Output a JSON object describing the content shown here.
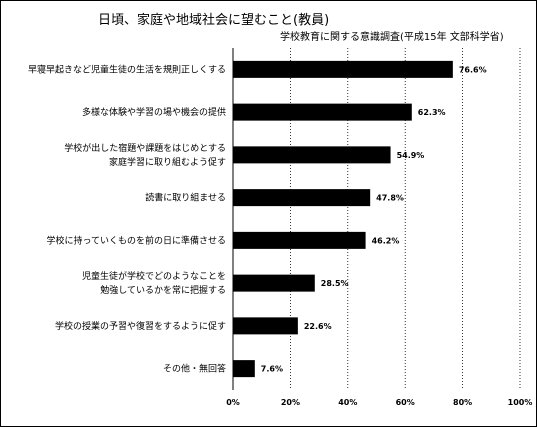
{
  "chart_data": {
    "type": "bar",
    "orientation": "horizontal",
    "title": "日頃、家庭や地域社会に望むこと(教員)",
    "subtitle": "学校教育に関する意識調査(平成15年 文部科学省)",
    "categories": [
      [
        "早寝早起きなど児童生徒の生活を規則正しくする"
      ],
      [
        "多様な体験や学習の場や機会の提供"
      ],
      [
        "学校が出した宿題や課題をはじめとする",
        "家庭学習に取り組むよう促す"
      ],
      [
        "読書に取り組ませる"
      ],
      [
        "学校に持っていくものを前の日に準備させる"
      ],
      [
        "児童生徒が学校でどのようなことを",
        "勉強しているかを常に把握する"
      ],
      [
        "学校の授業の予習や復習をするように促す"
      ],
      [
        "その他・無回答"
      ]
    ],
    "values": [
      76.6,
      62.3,
      54.9,
      47.8,
      46.2,
      28.5,
      22.6,
      7.6
    ],
    "value_labels": [
      "76.6%",
      "62.3%",
      "54.9%",
      "47.8%",
      "46.2%",
      "28.5%",
      "22.6%",
      "7.6%"
    ],
    "xlim": [
      0,
      100
    ],
    "x_ticks": [
      "0%",
      "20%",
      "40%",
      "60%",
      "80%",
      "100%"
    ],
    "grid": "vertical dotted",
    "bar_color": "#000000"
  }
}
